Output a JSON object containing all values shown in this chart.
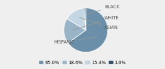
{
  "labels": [
    "HISPANIC",
    "WHITE",
    "ASIAN",
    "BLACK"
  ],
  "values": [
    65.0,
    18.6,
    15.4,
    1.0
  ],
  "colors": [
    "#6b8fa8",
    "#9ab4c7",
    "#c4d6e3",
    "#2d4a65"
  ],
  "legend_labels": [
    "65.0%",
    "18.6%",
    "15.4%",
    "1.0%"
  ],
  "startangle": 90,
  "background_color": "#efefef",
  "text_color": "#555555",
  "line_color": "#999999",
  "font_size": 4.8
}
